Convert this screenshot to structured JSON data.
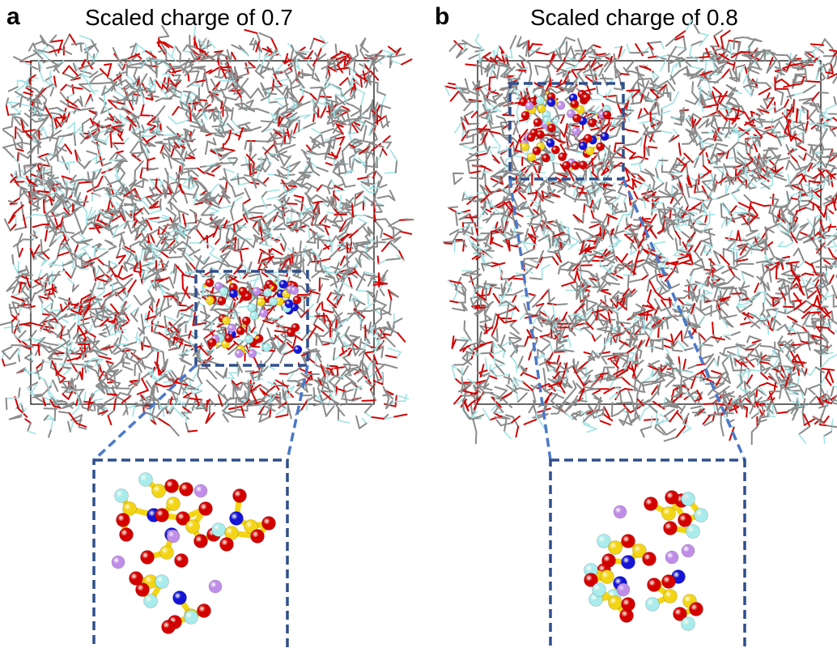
{
  "panels": [
    {
      "letter": "a",
      "title": "Scaled charge of 0.7"
    },
    {
      "letter": "b",
      "title": "Scaled charge of 0.8"
    }
  ],
  "colors": {
    "carbon": "#8a8a8a",
    "oxygen": "#d40000",
    "hydrogen": "#9fe3e6",
    "fluorine": "#a8ecee",
    "sulfur": "#f3d516",
    "nitrogen": "#1515d8",
    "lithium": "#c08ee8",
    "zoom_box": "#2f4f8c",
    "zoom_line": "#4b78c9",
    "box_border": "#000000"
  }
}
